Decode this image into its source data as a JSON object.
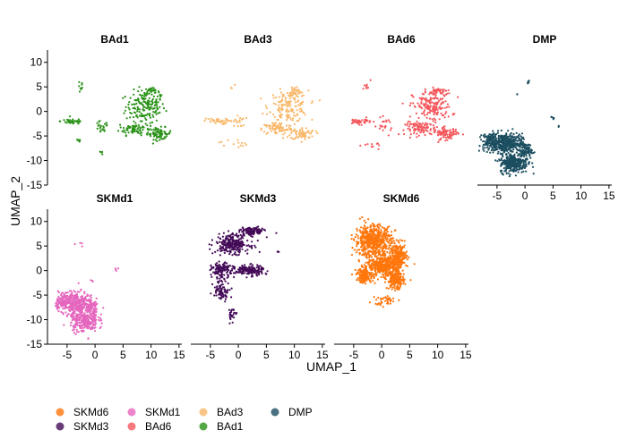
{
  "chart_data": {
    "type": "scatter",
    "title": "",
    "xlabel": "UMAP_1",
    "ylabel": "UMAP_2",
    "xlim": [
      -8.5,
      15.5
    ],
    "ylim": [
      -15,
      12.5
    ],
    "x_ticks": [
      -5,
      0,
      5,
      10,
      15
    ],
    "y_ticks": [
      10,
      5,
      0,
      -5,
      -10,
      -15
    ],
    "x_tick_labels": [
      "-5",
      "0",
      "5",
      "10",
      "15"
    ],
    "y_tick_labels": [
      "10",
      "5",
      "0",
      "-5",
      "-10",
      "-15"
    ],
    "grid": false,
    "legend_position": "bottom-left",
    "legend_order": [
      "SKMd6",
      "SKMd3",
      "SKMd1",
      "BAd6",
      "BAd3",
      "BAd1",
      "DMP"
    ],
    "panels": [
      {
        "name": "BAd1",
        "color": "#2a9218",
        "clusters": [
          {
            "cx": 9,
            "cy": 1,
            "rx": 3.5,
            "ry": 3.2,
            "n": 160
          },
          {
            "cx": 7,
            "cy": -3.5,
            "rx": 2.8,
            "ry": 1.3,
            "n": 80
          },
          {
            "cx": 11.5,
            "cy": -4.5,
            "rx": 2.2,
            "ry": 1.2,
            "n": 70
          },
          {
            "cx": 10,
            "cy": 4,
            "rx": 1.5,
            "ry": 0.8,
            "n": 30
          },
          {
            "cx": -4,
            "cy": -2,
            "rx": 2.2,
            "ry": 0.6,
            "n": 40
          },
          {
            "cx": 1,
            "cy": -3.5,
            "rx": 1.3,
            "ry": 1.5,
            "n": 20
          },
          {
            "cx": -2.5,
            "cy": 5,
            "rx": 0.5,
            "ry": 1.3,
            "n": 8
          },
          {
            "cx": -3,
            "cy": -6,
            "rx": 0.5,
            "ry": 0.8,
            "n": 5
          },
          {
            "cx": 1,
            "cy": -8.5,
            "rx": 0.4,
            "ry": 0.3,
            "n": 4
          }
        ]
      },
      {
        "name": "BAd3",
        "color": "#f9b86a",
        "clusters": [
          {
            "cx": 9,
            "cy": 1,
            "rx": 3.5,
            "ry": 3.2,
            "n": 160
          },
          {
            "cx": 7,
            "cy": -3.5,
            "rx": 2.8,
            "ry": 1.3,
            "n": 80
          },
          {
            "cx": 11.5,
            "cy": -4.5,
            "rx": 2.2,
            "ry": 1.2,
            "n": 70
          },
          {
            "cx": 10,
            "cy": 4,
            "rx": 1.5,
            "ry": 0.8,
            "n": 30
          },
          {
            "cx": -4,
            "cy": -2,
            "rx": 2.2,
            "ry": 0.6,
            "n": 35
          },
          {
            "cx": 0,
            "cy": -2,
            "rx": 1.3,
            "ry": 1.3,
            "n": 20
          },
          {
            "cx": -1,
            "cy": -6.5,
            "rx": 2.5,
            "ry": 1.0,
            "n": 14
          },
          {
            "cx": -1,
            "cy": 5,
            "rx": 0.5,
            "ry": 0.6,
            "n": 3
          }
        ]
      },
      {
        "name": "BAd6",
        "color": "#f4575c",
        "clusters": [
          {
            "cx": 9,
            "cy": 1,
            "rx": 3.5,
            "ry": 3.2,
            "n": 180
          },
          {
            "cx": 7,
            "cy": -3.5,
            "rx": 2.8,
            "ry": 1.3,
            "n": 90
          },
          {
            "cx": 11.5,
            "cy": -4.5,
            "rx": 2.2,
            "ry": 1.2,
            "n": 80
          },
          {
            "cx": 10,
            "cy": 4,
            "rx": 1.5,
            "ry": 0.8,
            "n": 35
          },
          {
            "cx": -4,
            "cy": -2,
            "rx": 2.2,
            "ry": 0.6,
            "n": 40
          },
          {
            "cx": 0.5,
            "cy": -3,
            "rx": 1.3,
            "ry": 1.5,
            "n": 20
          },
          {
            "cx": -2.5,
            "cy": 5,
            "rx": 0.6,
            "ry": 1.2,
            "n": 8
          },
          {
            "cx": -1.5,
            "cy": -7,
            "rx": 1.8,
            "ry": 1.0,
            "n": 10
          }
        ]
      },
      {
        "name": "DMP",
        "color": "#1b4e60",
        "clusters": [
          {
            "cx": -3.5,
            "cy": -6.5,
            "rx": 3.0,
            "ry": 2.0,
            "n": 380
          },
          {
            "cx": -2,
            "cy": -10.5,
            "rx": 2.5,
            "ry": 2.0,
            "n": 300
          },
          {
            "cx": -6,
            "cy": -6,
            "rx": 1.5,
            "ry": 1.5,
            "n": 100
          },
          {
            "cx": 0,
            "cy": -8,
            "rx": 1.2,
            "ry": 1.5,
            "n": 80
          },
          {
            "cx": 0.5,
            "cy": 6,
            "rx": 0.4,
            "ry": 0.6,
            "n": 5
          },
          {
            "cx": 5,
            "cy": -1.5,
            "rx": 0.4,
            "ry": 0.6,
            "n": 5
          },
          {
            "cx": -1.5,
            "cy": 3.5,
            "rx": 0.2,
            "ry": 0.3,
            "n": 2
          },
          {
            "cx": 6,
            "cy": -3,
            "rx": 0.2,
            "ry": 0.3,
            "n": 2
          }
        ]
      },
      {
        "name": "SKMd1",
        "color": "#e566be",
        "clusters": [
          {
            "cx": -3.5,
            "cy": -6.5,
            "rx": 3.0,
            "ry": 2.2,
            "n": 320
          },
          {
            "cx": -2,
            "cy": -10,
            "rx": 2.5,
            "ry": 2.5,
            "n": 280
          },
          {
            "cx": -5.5,
            "cy": -6.5,
            "rx": 1.5,
            "ry": 1.5,
            "n": 80
          },
          {
            "cx": -0.5,
            "cy": -7.5,
            "rx": 1.0,
            "ry": 1.5,
            "n": 60
          },
          {
            "cx": -3,
            "cy": 5,
            "rx": 1.5,
            "ry": 1.0,
            "n": 4
          },
          {
            "cx": 4,
            "cy": 0,
            "rx": 1.0,
            "ry": 0.8,
            "n": 4
          },
          {
            "cx": -0.5,
            "cy": -2,
            "rx": 0.5,
            "ry": 0.6,
            "n": 3
          }
        ]
      },
      {
        "name": "SKMd3",
        "color": "#440b58",
        "clusters": [
          {
            "cx": -1,
            "cy": 5.5,
            "rx": 3.0,
            "ry": 2.0,
            "n": 260
          },
          {
            "cx": 2.5,
            "cy": 8,
            "rx": 2.0,
            "ry": 0.8,
            "n": 120
          },
          {
            "cx": 2,
            "cy": 0,
            "rx": 2.5,
            "ry": 1.0,
            "n": 200
          },
          {
            "cx": -3,
            "cy": 0,
            "rx": 1.8,
            "ry": 1.5,
            "n": 130
          },
          {
            "cx": -3,
            "cy": -4,
            "rx": 1.5,
            "ry": 2.0,
            "n": 80
          },
          {
            "cx": -1,
            "cy": -9,
            "rx": 0.8,
            "ry": 1.5,
            "n": 25
          },
          {
            "cx": 7,
            "cy": 4,
            "rx": 0.3,
            "ry": 0.3,
            "n": 3
          }
        ]
      },
      {
        "name": "SKMd6",
        "color": "#ff760c",
        "clusters": [
          {
            "cx": -1.5,
            "cy": 6,
            "rx": 3.2,
            "ry": 3.2,
            "n": 600
          },
          {
            "cx": 0.5,
            "cy": 1,
            "rx": 3.0,
            "ry": 2.0,
            "n": 400
          },
          {
            "cx": 2.5,
            "cy": -2,
            "rx": 1.5,
            "ry": 1.8,
            "n": 200
          },
          {
            "cx": -3,
            "cy": -1,
            "rx": 1.5,
            "ry": 1.5,
            "n": 150
          },
          {
            "cx": 3,
            "cy": 3,
            "rx": 1.5,
            "ry": 2.5,
            "n": 200
          },
          {
            "cx": 1,
            "cy": -6,
            "rx": 2.0,
            "ry": 1.0,
            "n": 30
          },
          {
            "cx": -0.5,
            "cy": -7,
            "rx": 0.8,
            "ry": 0.6,
            "n": 8
          }
        ]
      }
    ],
    "legend": [
      {
        "label": "SKMd6",
        "color": "#ff760c"
      },
      {
        "label": "SKMd3",
        "color": "#440b58"
      },
      {
        "label": "SKMd1",
        "color": "#e566be"
      },
      {
        "label": "BAd6",
        "color": "#f4575c"
      },
      {
        "label": "BAd3",
        "color": "#f9b86a"
      },
      {
        "label": "BAd1",
        "color": "#2a9218"
      },
      {
        "label": "DMP",
        "color": "#1b4e60"
      }
    ]
  }
}
